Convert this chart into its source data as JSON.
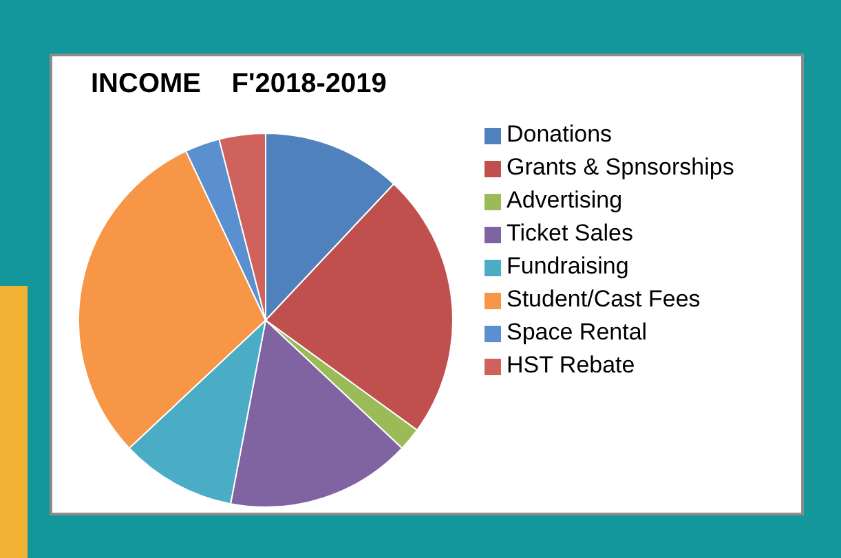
{
  "chart_data": {
    "type": "pie",
    "title": "INCOME    F'2018-2019",
    "categories": [
      "Donations",
      "Grants & Spnsorships",
      "Advertising",
      "Ticket Sales",
      "Fundraising",
      "Student/Cast Fees",
      "Space Rental",
      "HST Rebate"
    ],
    "values": [
      12,
      23,
      2,
      16,
      10,
      30,
      3,
      4
    ],
    "colors": [
      "#4f81bd",
      "#c0504d",
      "#9bbb59",
      "#8064a2",
      "#4bacc6",
      "#f79646",
      "#5a8fd0",
      "#d0625e"
    ],
    "legend": "right"
  }
}
